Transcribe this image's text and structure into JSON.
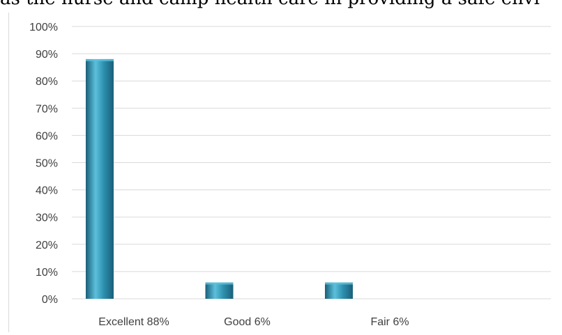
{
  "header": {
    "clipped_text": "as the nurse and camp health care in providing a safe envi"
  },
  "colors": {
    "bar": "#2c8fae",
    "bar_dark": "#1a5f78",
    "bar_light": "#5cc0dc",
    "grid": "#d9d9d9"
  },
  "chart_data": {
    "type": "bar",
    "categories": [
      "Excellent 88%",
      "Good 6%",
      "Fair 6%"
    ],
    "values": [
      88,
      6,
      6
    ],
    "y_unit": "%",
    "ylim": [
      0,
      100
    ],
    "yticks": [
      "0%",
      "10%",
      "20%",
      "30%",
      "40%",
      "50%",
      "60%",
      "70%",
      "80%",
      "90%",
      "100%"
    ],
    "grid": true,
    "title": "",
    "xlabel": "",
    "ylabel": ""
  }
}
